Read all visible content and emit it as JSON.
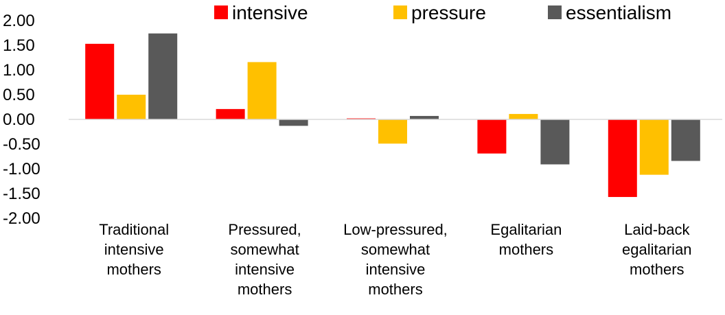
{
  "chart_data": {
    "type": "bar",
    "title": "",
    "xlabel": "",
    "ylabel": "",
    "ylim": [
      -2.0,
      2.0
    ],
    "yticks": [
      "2.00",
      "1.50",
      "1.00",
      "0.50",
      "0.00",
      "-0.50",
      "-1.00",
      "-1.50",
      "-2.00"
    ],
    "grid": false,
    "legend_position": "top",
    "categories": [
      "Traditional intensive mothers",
      "Pressured, somewhat intensive mothers",
      "Low-pressured, somewhat intensive mothers",
      "Egalitarian mothers",
      "Laid-back egalitarian mothers"
    ],
    "category_lines": [
      [
        "Traditional",
        "intensive",
        "mothers"
      ],
      [
        "Pressured,",
        "somewhat",
        "intensive",
        "mothers"
      ],
      [
        "Low-pressured,",
        "somewhat",
        "intensive",
        "mothers"
      ],
      [
        "Egalitarian",
        "mothers"
      ],
      [
        "Laid-back",
        "egalitarian",
        "mothers"
      ]
    ],
    "series": [
      {
        "name": "intensive",
        "color": "#FF0000",
        "values": [
          1.53,
          0.21,
          0.02,
          -0.69,
          -1.57
        ]
      },
      {
        "name": "pressure",
        "color": "#FFC000",
        "values": [
          0.5,
          1.16,
          -0.49,
          0.11,
          -1.12
        ]
      },
      {
        "name": "essentialism",
        "color": "#595959",
        "values": [
          1.74,
          -0.13,
          0.07,
          -0.91,
          -0.84
        ]
      }
    ]
  }
}
